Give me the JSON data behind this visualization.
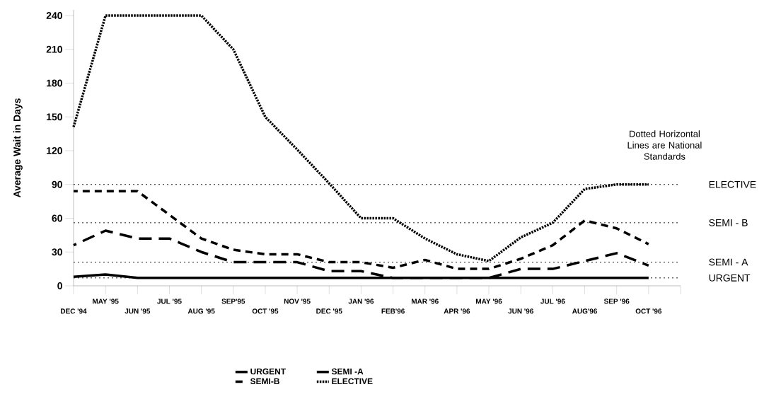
{
  "chart_data": {
    "type": "line",
    "ylabel": "Average Wait in Days",
    "categories": [
      "DEC '94",
      "MAY '95",
      "JUN '95",
      "JUL '95",
      "AUG '95",
      "SEP'95",
      "OCT '95",
      "NOV '95",
      "DEC '95",
      "JAN '96",
      "FEB'96",
      "MAR '96",
      "APR '96",
      "MAY '96",
      "JUN '96",
      "JUL '96",
      "AUG'96",
      "SEP '96",
      "OCT '96"
    ],
    "series": [
      {
        "name": "URGENT",
        "color": "#000000",
        "line_style": "solid",
        "values": [
          8,
          10,
          7,
          7,
          7,
          7,
          7,
          7,
          7,
          7,
          7,
          7,
          7,
          7,
          7,
          7,
          7,
          7,
          7
        ]
      },
      {
        "name": "SEMI -A",
        "color": "#000000",
        "line_style": "dashed",
        "values": [
          36,
          49,
          42,
          42,
          30,
          21,
          21,
          21,
          13,
          13,
          7,
          7,
          7,
          7,
          15,
          15,
          22,
          29,
          18
        ]
      },
      {
        "name": "SEMI-B",
        "color": "#000000",
        "line_style": "dashed",
        "values": [
          84,
          84,
          84,
          63,
          42,
          32,
          28,
          28,
          21,
          21,
          16,
          23,
          15,
          15,
          24,
          36,
          58,
          51,
          37
        ]
      },
      {
        "name": "ELECTIVE",
        "color": "#000000",
        "line_style": "dotted",
        "values": [
          141,
          240,
          240,
          240,
          240,
          210,
          150,
          121,
          91,
          60,
          60,
          42,
          28,
          22,
          43,
          56,
          86,
          90,
          90
        ]
      }
    ],
    "ylim": [
      0,
      245
    ],
    "yticks": [
      0,
      30,
      60,
      90,
      120,
      150,
      180,
      210,
      240
    ],
    "ref_lines": [
      {
        "axis": "y",
        "value": 90,
        "label": "ELECTIVE",
        "line_style": "dotted"
      },
      {
        "axis": "y",
        "value": 56,
        "label": "SEMI - B",
        "line_style": "dotted"
      },
      {
        "axis": "y",
        "value": 21,
        "label": "SEMI - A",
        "line_style": "dotted"
      },
      {
        "axis": "y",
        "value": 7,
        "label": "URGENT",
        "line_style": "dotted"
      }
    ],
    "annotations": [
      "Dotted Horizontal Lines are National Standards"
    ],
    "grid": false,
    "legend": "bottom"
  }
}
